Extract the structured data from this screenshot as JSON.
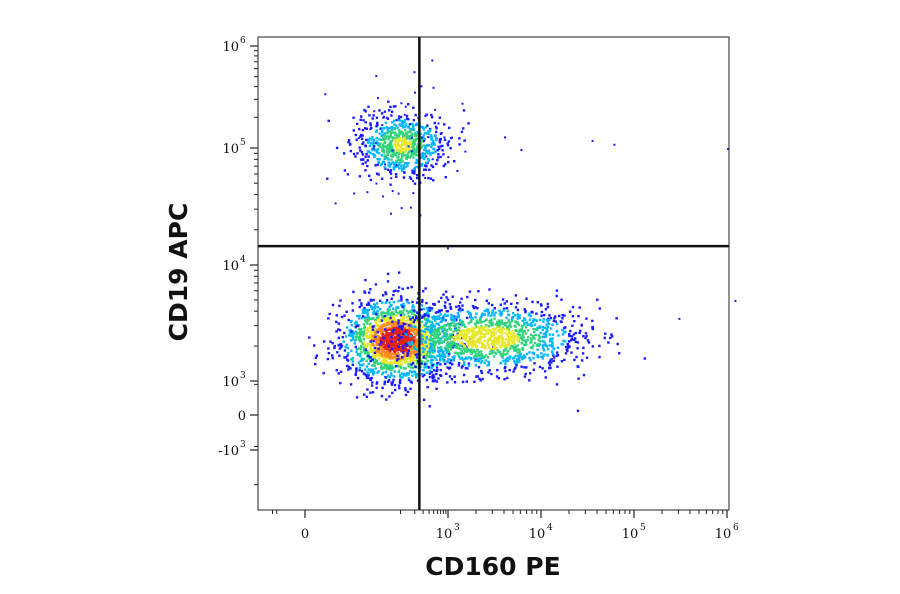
{
  "chart_data": {
    "type": "scatter",
    "subtype": "flow-cytometry-density-dot-plot",
    "xlabel": "CD160 PE",
    "ylabel": "CD19 APC",
    "xscale": "biexponential",
    "yscale": "biexponential",
    "x_ticks": [
      {
        "base": "0",
        "exp": "",
        "value": 0
      },
      {
        "base": "10",
        "exp": "3",
        "value": 1000
      },
      {
        "base": "10",
        "exp": "4",
        "value": 10000
      },
      {
        "base": "10",
        "exp": "5",
        "value": 100000
      },
      {
        "base": "10",
        "exp": "6",
        "value": 1000000
      }
    ],
    "y_ticks": [
      {
        "base": "10",
        "exp": "6",
        "value": 1000000
      },
      {
        "base": "10",
        "exp": "5",
        "value": 100000
      },
      {
        "base": "10",
        "exp": "4",
        "value": 10000
      },
      {
        "base": "10",
        "exp": "3",
        "value": 1000
      },
      {
        "base": "0",
        "exp": "",
        "value": 0
      },
      {
        "base": "-10",
        "exp": "3",
        "value": -1000
      }
    ],
    "quadrant_gate": {
      "x": 250,
      "y": 14500
    },
    "populations": [
      {
        "center_x": 80,
        "center_y": 2300,
        "relative_density": "highest",
        "color": "#e0211a"
      },
      {
        "center_x": 2500,
        "center_y": 2400,
        "relative_density": "medium",
        "color": "#38c45a"
      },
      {
        "center_x": 100,
        "center_y": 110000,
        "relative_density": "medium",
        "color": "#2fb6d8"
      }
    ],
    "sparse_events": [
      [
        800,
        130000
      ],
      [
        4000,
        130000
      ],
      [
        35000,
        120000
      ],
      [
        60000,
        110000
      ],
      [
        1000000,
        100000
      ],
      [
        300,
        120000
      ],
      [
        600,
        105000
      ],
      [
        1500,
        95000
      ],
      [
        6000,
        98000
      ],
      [
        300000,
        3500
      ],
      [
        1200000,
        5000
      ],
      [
        20000,
        2500
      ]
    ],
    "density_colors": [
      "#1a1aff",
      "#00b7ff",
      "#2fd37a",
      "#e8e82a",
      "#ff8a1a",
      "#e0211a"
    ],
    "grid": false,
    "legend": "none"
  }
}
